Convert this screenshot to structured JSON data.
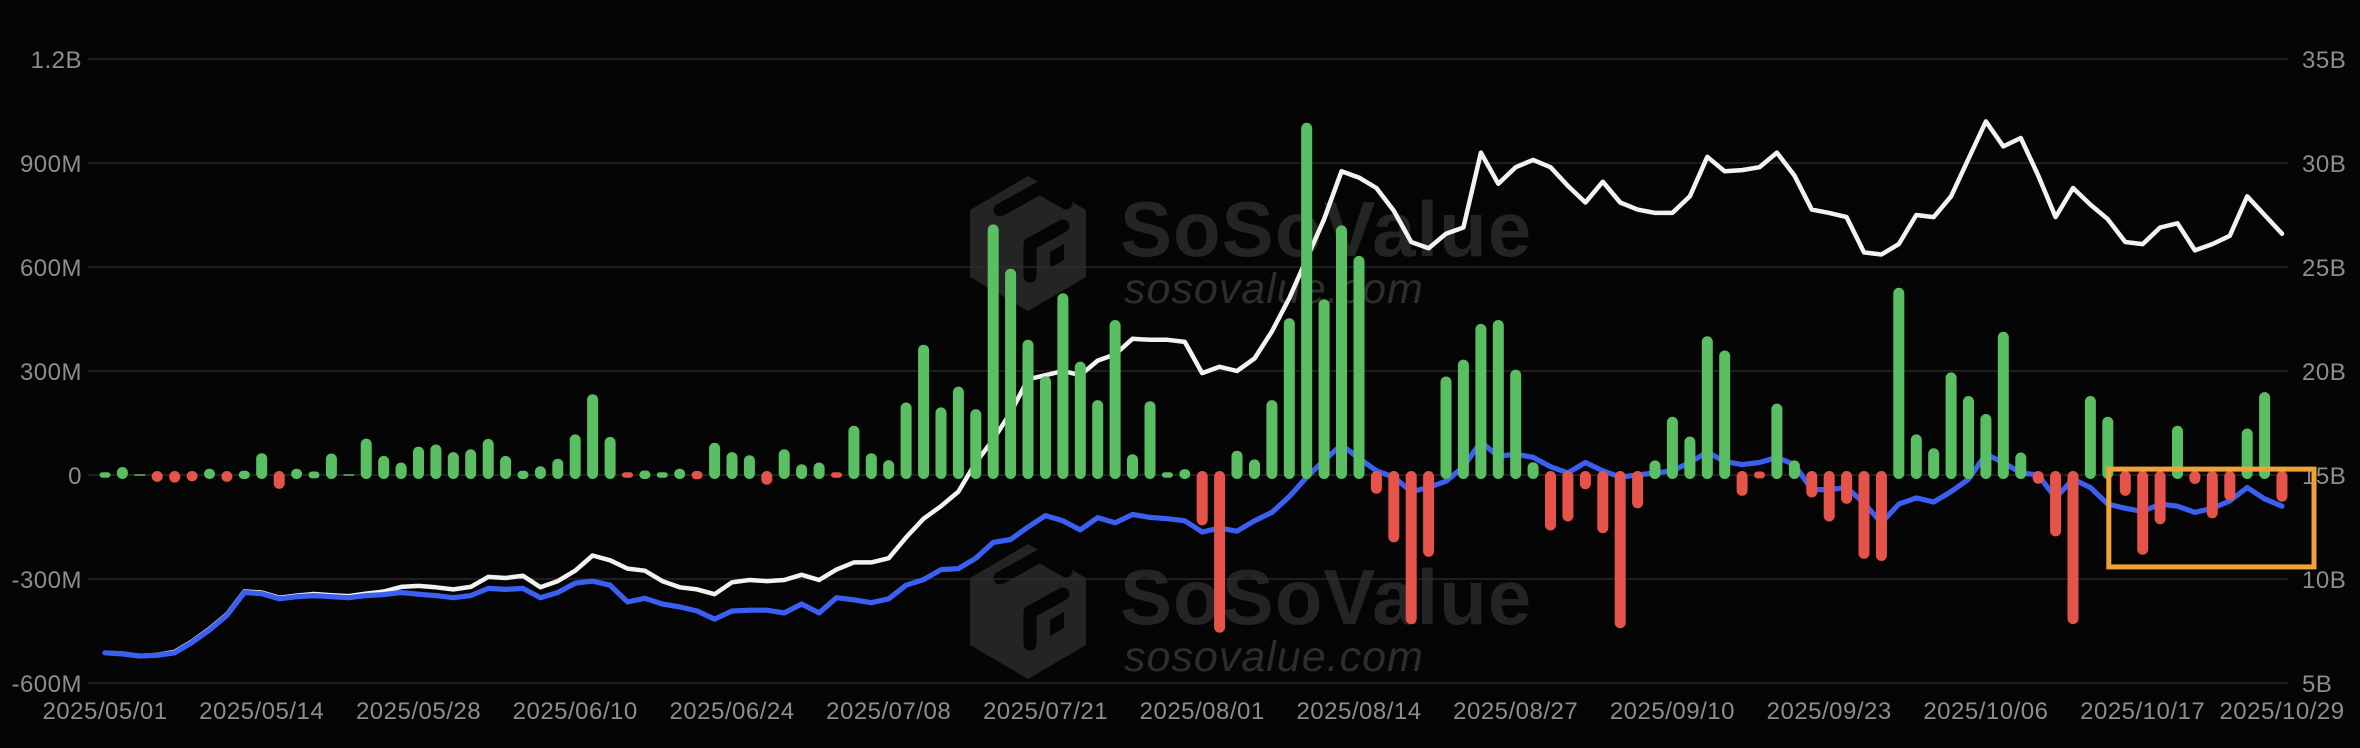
{
  "page": {
    "background": "#050505"
  },
  "colors": {
    "background": "#050505",
    "grid": "#2d2d2d",
    "axis_text": "#8d8d8d",
    "bar_positive": "#5abf63",
    "bar_negative": "#e5534b",
    "line_white": "#f2f2f2",
    "line_blue": "#3a5ff2",
    "highlight_orange": "#f0a236",
    "watermark_fill": "#242424",
    "watermark_domain_fill": "#2d2d2d"
  },
  "watermark": {
    "brand": "SoSoValue",
    "domain": "sosovalue.com"
  },
  "axes": {
    "left": {
      "labels": [
        "1.2B",
        "900M",
        "600M",
        "300M",
        "0",
        "-300M",
        "-600M"
      ]
    },
    "right": {
      "labels": [
        "35B",
        "30B",
        "25B",
        "20B",
        "15B",
        "10B",
        "5B"
      ]
    },
    "x": {
      "tick_labels": [
        "2025/05/01",
        "2025/05/14",
        "2025/05/28",
        "2025/06/10",
        "2025/06/24",
        "2025/07/08",
        "2025/07/21",
        "2025/08/01",
        "2025/08/14",
        "2025/08/27",
        "2025/09/10",
        "2025/09/23",
        "2025/10/06",
        "2025/10/17",
        "2025/10/29"
      ]
    }
  },
  "chart_data": {
    "type": "mixed",
    "grid": true,
    "legend": false,
    "left_axis_range_M": [
      -600,
      1200
    ],
    "right_axis_range_B": [
      5,
      35
    ],
    "x": [
      "2025/05/01",
      "2025/05/02",
      "2025/05/05",
      "2025/05/06",
      "2025/05/07",
      "2025/05/08",
      "2025/05/09",
      "2025/05/12",
      "2025/05/13",
      "2025/05/14",
      "2025/05/15",
      "2025/05/16",
      "2025/05/19",
      "2025/05/20",
      "2025/05/21",
      "2025/05/22",
      "2025/05/23",
      "2025/05/27",
      "2025/05/28",
      "2025/05/29",
      "2025/05/30",
      "2025/06/02",
      "2025/06/03",
      "2025/06/04",
      "2025/06/05",
      "2025/06/06",
      "2025/06/09",
      "2025/06/10",
      "2025/06/11",
      "2025/06/12",
      "2025/06/13",
      "2025/06/16",
      "2025/06/17",
      "2025/06/18",
      "2025/06/20",
      "2025/06/23",
      "2025/06/24",
      "2025/06/25",
      "2025/06/26",
      "2025/06/27",
      "2025/06/30",
      "2025/07/01",
      "2025/07/02",
      "2025/07/03",
      "2025/07/07",
      "2025/07/08",
      "2025/07/09",
      "2025/07/10",
      "2025/07/11",
      "2025/07/14",
      "2025/07/15",
      "2025/07/16",
      "2025/07/17",
      "2025/07/18",
      "2025/07/21",
      "2025/07/22",
      "2025/07/23",
      "2025/07/24",
      "2025/07/25",
      "2025/07/28",
      "2025/07/29",
      "2025/07/30",
      "2025/07/31",
      "2025/08/01",
      "2025/08/04",
      "2025/08/05",
      "2025/08/06",
      "2025/08/07",
      "2025/08/08",
      "2025/08/11",
      "2025/08/12",
      "2025/08/13",
      "2025/08/14",
      "2025/08/15",
      "2025/08/18",
      "2025/08/19",
      "2025/08/20",
      "2025/08/21",
      "2025/08/22",
      "2025/08/25",
      "2025/08/26",
      "2025/08/27",
      "2025/08/28",
      "2025/08/29",
      "2025/09/02",
      "2025/09/03",
      "2025/09/04",
      "2025/09/05",
      "2025/09/08",
      "2025/09/09",
      "2025/09/10",
      "2025/09/11",
      "2025/09/12",
      "2025/09/15",
      "2025/09/16",
      "2025/09/17",
      "2025/09/18",
      "2025/09/19",
      "2025/09/22",
      "2025/09/23",
      "2025/09/24",
      "2025/09/25",
      "2025/09/26",
      "2025/09/29",
      "2025/09/30",
      "2025/10/01",
      "2025/10/02",
      "2025/10/03",
      "2025/10/06",
      "2025/10/07",
      "2025/10/08",
      "2025/10/09",
      "2025/10/10",
      "2025/10/13",
      "2025/10/14",
      "2025/10/15",
      "2025/10/16",
      "2025/10/17",
      "2025/10/20",
      "2025/10/21",
      "2025/10/22",
      "2025/10/23",
      "2025/10/24",
      "2025/10/27",
      "2025/10/28",
      "2025/10/29"
    ],
    "series": [
      {
        "name": "daily-net-flow",
        "type": "bar",
        "axis": "left",
        "unit": "USD millions",
        "values": [
          8,
          23,
          2,
          -20,
          -22,
          -18,
          18,
          -20,
          12,
          63,
          -40,
          18,
          10,
          62,
          2,
          105,
          55,
          36,
          82,
          88,
          66,
          74,
          104,
          55,
          12,
          25,
          47,
          117,
          233,
          110,
          -8,
          13,
          8,
          18,
          -12,
          93,
          66,
          57,
          -28,
          74,
          31,
          36,
          -8,
          142,
          63,
          43,
          209,
          376,
          195,
          255,
          190,
          723,
          595,
          390,
          285,
          524,
          327,
          216,
          447,
          60,
          213,
          8,
          17,
          -145,
          -455,
          70,
          45,
          216,
          452,
          1016,
          507,
          720,
          632,
          -54,
          -194,
          -430,
          -236,
          284,
          333,
          436,
          447,
          304,
          37,
          -160,
          -134,
          -41,
          -168,
          -442,
          -96,
          42,
          168,
          111,
          400,
          359,
          -60,
          -10,
          206,
          42,
          -65,
          -134,
          -83,
          -242,
          -248,
          540,
          117,
          77,
          296,
          228,
          176,
          413,
          65,
          -25,
          -177,
          -430,
          228,
          168,
          -60,
          -230,
          -142,
          142,
          -26,
          -125,
          -74,
          134,
          239,
          -77
        ]
      },
      {
        "name": "white-line",
        "type": "line",
        "axis": "right",
        "unit": "USD billions",
        "values": [
          6.45,
          6.42,
          6.3,
          6.35,
          6.5,
          7.0,
          7.6,
          8.3,
          9.4,
          9.35,
          9.1,
          9.2,
          9.28,
          9.22,
          9.18,
          9.3,
          9.4,
          9.62,
          9.67,
          9.6,
          9.5,
          9.62,
          10.1,
          10.05,
          10.16,
          9.6,
          9.9,
          10.4,
          11.13,
          10.9,
          10.5,
          10.4,
          9.9,
          9.6,
          9.5,
          9.27,
          9.84,
          9.95,
          9.9,
          9.95,
          10.2,
          9.95,
          10.45,
          10.8,
          10.8,
          11.0,
          12.0,
          12.9,
          13.5,
          14.2,
          15.6,
          16.7,
          18.0,
          19.6,
          19.8,
          20.0,
          19.8,
          20.5,
          20.8,
          21.55,
          21.5,
          21.5,
          21.4,
          19.9,
          20.2,
          20.0,
          20.6,
          21.9,
          23.5,
          25.4,
          27.3,
          29.6,
          29.3,
          28.8,
          27.7,
          26.2,
          25.9,
          26.6,
          26.9,
          30.5,
          29.0,
          29.8,
          30.15,
          29.8,
          28.9,
          28.1,
          29.1,
          28.1,
          27.76,
          27.6,
          27.6,
          28.4,
          30.3,
          29.6,
          29.66,
          29.8,
          30.5,
          29.4,
          27.76,
          27.6,
          27.4,
          25.7,
          25.6,
          26.1,
          27.5,
          27.4,
          28.4,
          30.2,
          32.0,
          30.8,
          31.2,
          29.4,
          27.4,
          28.8,
          28.0,
          27.3,
          26.2,
          26.1,
          26.9,
          27.1,
          25.8,
          26.1,
          26.5,
          28.4,
          27.5,
          26.6
        ]
      },
      {
        "name": "blue-line",
        "type": "line",
        "axis": "right",
        "unit": "USD billions",
        "values": [
          6.45,
          6.4,
          6.3,
          6.33,
          6.45,
          6.95,
          7.55,
          8.25,
          9.35,
          9.3,
          9.05,
          9.15,
          9.2,
          9.15,
          9.1,
          9.2,
          9.25,
          9.35,
          9.27,
          9.2,
          9.1,
          9.2,
          9.55,
          9.5,
          9.55,
          9.1,
          9.35,
          9.8,
          9.9,
          9.7,
          8.9,
          9.07,
          8.8,
          8.66,
          8.46,
          8.07,
          8.46,
          8.5,
          8.5,
          8.37,
          8.8,
          8.37,
          9.1,
          9.0,
          8.86,
          9.05,
          9.7,
          9.97,
          10.45,
          10.5,
          11.0,
          11.76,
          11.9,
          12.5,
          13.05,
          12.8,
          12.36,
          12.95,
          12.7,
          13.1,
          12.96,
          12.9,
          12.8,
          12.26,
          12.45,
          12.3,
          12.8,
          13.2,
          13.96,
          14.9,
          15.7,
          16.45,
          15.8,
          15.2,
          14.9,
          14.2,
          14.4,
          14.7,
          15.4,
          16.6,
          15.9,
          16.0,
          15.85,
          15.4,
          15.1,
          15.6,
          15.2,
          14.9,
          15.0,
          15.1,
          15.2,
          15.6,
          16.1,
          15.65,
          15.5,
          15.6,
          15.85,
          15.5,
          14.3,
          14.3,
          14.4,
          13.65,
          12.7,
          13.6,
          13.9,
          13.7,
          14.2,
          14.8,
          16.0,
          15.6,
          15.1,
          15.0,
          13.9,
          14.8,
          14.4,
          13.6,
          13.4,
          13.25,
          13.6,
          13.5,
          13.2,
          13.4,
          13.75,
          14.4,
          13.85,
          13.5
        ]
      }
    ],
    "highlight_box": {
      "from_date": "2025/10/15",
      "to_date": "2025/10/29",
      "top_value_M": 17,
      "bottom_value_M": -265,
      "color": "#f0a236"
    }
  }
}
